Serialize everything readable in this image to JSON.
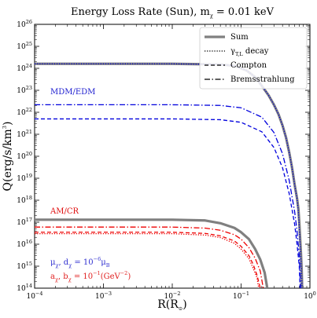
{
  "chart_data": {
    "type": "line",
    "title": "Energy Loss Rate (Sun), m",
    "title_sub": "χ",
    "title_suffix": " = 0.01 keV",
    "xlabel": "R(R",
    "xlabel_sub": "⊙",
    "xlabel_suffix": ")",
    "ylabel": "Q(erg/s/km",
    "ylabel_sup": "3",
    "ylabel_suffix": ")",
    "xscale": "log",
    "yscale": "log",
    "xlim": [
      0.0001,
      1
    ],
    "ylim": [
      100000000000000.0,
      1e+26
    ],
    "x_ticks": [
      {
        "base": "10",
        "exp": "−4"
      },
      {
        "base": "10",
        "exp": "−3"
      },
      {
        "base": "10",
        "exp": "−2"
      },
      {
        "base": "10",
        "exp": "−1"
      },
      {
        "base": "10",
        "exp": "0"
      }
    ],
    "y_ticks": [
      {
        "base": "10",
        "exp": "14"
      },
      {
        "base": "10",
        "exp": "15"
      },
      {
        "base": "10",
        "exp": "16"
      },
      {
        "base": "10",
        "exp": "17"
      },
      {
        "base": "10",
        "exp": "18"
      },
      {
        "base": "10",
        "exp": "19"
      },
      {
        "base": "10",
        "exp": "20"
      },
      {
        "base": "10",
        "exp": "21"
      },
      {
        "base": "10",
        "exp": "22"
      },
      {
        "base": "10",
        "exp": "23"
      },
      {
        "base": "10",
        "exp": "24"
      },
      {
        "base": "10",
        "exp": "25"
      },
      {
        "base": "10",
        "exp": "26"
      }
    ],
    "legend": {
      "placement": "top-right",
      "entries": [
        {
          "label": "Sum",
          "style": "solid-thick"
        },
        {
          "label": "γ",
          "label_sub": "T,L",
          "label_suffix": " decay",
          "style": "dotted"
        },
        {
          "label": "Compton",
          "style": "dashed"
        },
        {
          "label": "Bremsstrahlung",
          "style": "dashdot"
        }
      ]
    },
    "annotations": {
      "mdm": "MDM/EDM",
      "amcr": "AM/CR",
      "param_blue": "μ",
      "param_blue_sub": "χ",
      "param_blue_mid": ", d",
      "param_blue_sub2": "χ",
      "param_blue_eq": " = 10",
      "param_blue_sup": "−6",
      "param_blue_end": "μ",
      "param_blue_end_sub": "B",
      "param_red": "a",
      "param_red_sub": "χ",
      "param_red_mid": ", b",
      "param_red_sub2": "χ",
      "param_red_eq": " = 10",
      "param_red_sup": "−1",
      "param_red_end": "(GeV",
      "param_red_end_sup": "−2",
      "param_red_close": ")"
    },
    "colors": {
      "sum": "#808080",
      "mdm": "#0000dd",
      "amcr": "#ee0000"
    },
    "series": [
      {
        "group": "mdm",
        "kind": "sum",
        "points": [
          [
            0.0001,
            1.6e+24
          ],
          [
            0.01,
            1.6e+24
          ],
          [
            0.05,
            1.5e+24
          ],
          [
            0.08,
            1.3e+24
          ],
          [
            0.12,
            8e+23
          ],
          [
            0.16,
            4e+23
          ],
          [
            0.2,
            1.6e+23
          ],
          [
            0.25,
            6e+22
          ],
          [
            0.3,
            2.2e+22
          ],
          [
            0.35,
            8e+21
          ],
          [
            0.4,
            2.5e+21
          ],
          [
            0.45,
            7e+20
          ],
          [
            0.5,
            1.5e+20
          ],
          [
            0.55,
            3e+19
          ],
          [
            0.6,
            5e+18
          ],
          [
            0.65,
            1.2e+18
          ],
          [
            0.68,
            4e+17
          ],
          [
            0.7,
            1e+17
          ],
          [
            0.72,
            2e+16
          ],
          [
            0.74,
            4000000000000000.0
          ],
          [
            0.76,
            600000000000000.0
          ],
          [
            0.77,
            100000000000000.0
          ]
        ]
      },
      {
        "group": "mdm",
        "kind": "decay",
        "points": [
          [
            0.0001,
            1.6e+24
          ],
          [
            0.01,
            1.6e+24
          ],
          [
            0.05,
            1.5e+24
          ],
          [
            0.08,
            1.3e+24
          ],
          [
            0.12,
            8e+23
          ],
          [
            0.16,
            4e+23
          ],
          [
            0.2,
            1.6e+23
          ],
          [
            0.25,
            6e+22
          ],
          [
            0.3,
            2.2e+22
          ],
          [
            0.35,
            8e+21
          ],
          [
            0.4,
            2.5e+21
          ],
          [
            0.45,
            7e+20
          ],
          [
            0.5,
            1.5e+20
          ],
          [
            0.55,
            3e+19
          ],
          [
            0.6,
            5e+18
          ],
          [
            0.65,
            1.2e+18
          ],
          [
            0.68,
            3e+17
          ],
          [
            0.7,
            6e+16
          ],
          [
            0.72,
            1e+16
          ],
          [
            0.74,
            2000000000000000.0
          ],
          [
            0.76,
            300000000000000.0
          ],
          [
            0.77,
            100000000000000.0
          ]
        ]
      },
      {
        "group": "mdm",
        "kind": "compton",
        "points": [
          [
            0.0001,
            5e+21
          ],
          [
            0.01,
            5e+21
          ],
          [
            0.05,
            4.6e+21
          ],
          [
            0.1,
            3.5e+21
          ],
          [
            0.2,
            1.3e+21
          ],
          [
            0.3,
            2.5e+20
          ],
          [
            0.4,
            3e+19
          ],
          [
            0.5,
            2e+18
          ],
          [
            0.6,
            8e+16
          ],
          [
            0.65,
            1e+16
          ],
          [
            0.7,
            1000000000000000.0
          ],
          [
            0.72,
            100000000000000.0
          ]
        ]
      },
      {
        "group": "mdm",
        "kind": "brems",
        "points": [
          [
            0.0001,
            2.2e+22
          ],
          [
            0.01,
            2.2e+22
          ],
          [
            0.05,
            2.05e+22
          ],
          [
            0.1,
            1.6e+22
          ],
          [
            0.2,
            6e+21
          ],
          [
            0.3,
            1.2e+21
          ],
          [
            0.4,
            1.3e+20
          ],
          [
            0.5,
            8e+18
          ],
          [
            0.6,
            3e+17
          ],
          [
            0.65,
            4e+16
          ],
          [
            0.7,
            3000000000000000.0
          ],
          [
            0.73,
            100000000000000.0
          ]
        ]
      },
      {
        "group": "amcr",
        "kind": "sum",
        "points": [
          [
            0.0001,
            1.3e+17
          ],
          [
            0.01,
            1.3e+17
          ],
          [
            0.03,
            1.2e+17
          ],
          [
            0.05,
            9e+16
          ],
          [
            0.08,
            5.5e+16
          ],
          [
            0.1,
            3.5e+16
          ],
          [
            0.13,
            1.7e+16
          ],
          [
            0.16,
            6000000000000000.0
          ],
          [
            0.19,
            2000000000000000.0
          ],
          [
            0.22,
            500000000000000.0
          ],
          [
            0.24,
            100000000000000.0
          ]
        ]
      },
      {
        "group": "amcr",
        "kind": "decay",
        "points": [
          [
            0.0001,
            3e+16
          ],
          [
            0.01,
            3e+16
          ],
          [
            0.03,
            2.6e+16
          ],
          [
            0.05,
            2e+16
          ],
          [
            0.08,
            1.1e+16
          ],
          [
            0.1,
            6000000000000000.0
          ],
          [
            0.13,
            2200000000000000.0
          ],
          [
            0.15,
            800000000000000.0
          ],
          [
            0.17,
            300000000000000.0
          ],
          [
            0.18,
            100000000000000.0
          ]
        ]
      },
      {
        "group": "amcr",
        "kind": "compton",
        "points": [
          [
            0.0001,
            3.5e+16
          ],
          [
            0.01,
            3.5e+16
          ],
          [
            0.03,
            3.1e+16
          ],
          [
            0.05,
            2.4e+16
          ],
          [
            0.08,
            1.4e+16
          ],
          [
            0.1,
            8000000000000000.0
          ],
          [
            0.13,
            3000000000000000.0
          ],
          [
            0.15,
            1200000000000000.0
          ],
          [
            0.17,
            400000000000000.0
          ],
          [
            0.19,
            100000000000000.0
          ]
        ]
      },
      {
        "group": "amcr",
        "kind": "brems",
        "points": [
          [
            0.0001,
            6e+16
          ],
          [
            0.01,
            6e+16
          ],
          [
            0.03,
            5.4e+16
          ],
          [
            0.05,
            4.3e+16
          ],
          [
            0.08,
            2.7e+16
          ],
          [
            0.1,
            1.7e+16
          ],
          [
            0.13,
            7000000000000000.0
          ],
          [
            0.16,
            2300000000000000.0
          ],
          [
            0.19,
            600000000000000.0
          ],
          [
            0.21,
            100000000000000.0
          ]
        ]
      }
    ]
  }
}
